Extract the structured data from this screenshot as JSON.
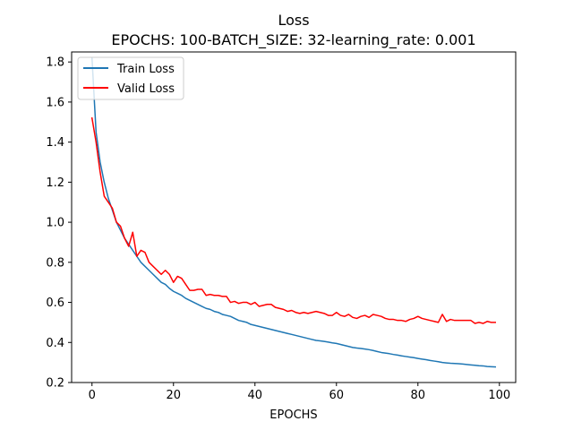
{
  "chart_data": {
    "type": "line",
    "title": "Loss",
    "subtitle": "EPOCHS: 100-BATCH_SIZE: 32-learning_rate: 0.001",
    "xlabel": "EPOCHS",
    "ylabel": "",
    "xlim": [
      -5,
      104
    ],
    "ylim": [
      0.2,
      1.85
    ],
    "x_ticks": [
      0,
      20,
      40,
      60,
      80,
      100
    ],
    "y_ticks": [
      0.2,
      0.4,
      0.6,
      0.8,
      1.0,
      1.2,
      1.4,
      1.6,
      1.8
    ],
    "y_tick_labels": [
      "0.2",
      "0.4",
      "0.6",
      "0.8",
      "1.0",
      "1.2",
      "1.4",
      "1.6",
      "1.8"
    ],
    "grid": false,
    "legend_position": "top-left",
    "series": [
      {
        "name": "Train Loss",
        "color": "#1f77b4",
        "values": [
          1.82,
          1.45,
          1.3,
          1.2,
          1.12,
          1.06,
          1.0,
          0.96,
          0.92,
          0.89,
          0.86,
          0.83,
          0.8,
          0.78,
          0.76,
          0.74,
          0.72,
          0.7,
          0.69,
          0.67,
          0.655,
          0.645,
          0.635,
          0.62,
          0.61,
          0.6,
          0.59,
          0.58,
          0.57,
          0.565,
          0.555,
          0.55,
          0.54,
          0.535,
          0.53,
          0.52,
          0.51,
          0.505,
          0.5,
          0.49,
          0.485,
          0.48,
          0.475,
          0.47,
          0.465,
          0.46,
          0.455,
          0.45,
          0.445,
          0.44,
          0.435,
          0.43,
          0.425,
          0.42,
          0.415,
          0.41,
          0.408,
          0.405,
          0.402,
          0.398,
          0.395,
          0.39,
          0.385,
          0.38,
          0.375,
          0.372,
          0.37,
          0.367,
          0.364,
          0.36,
          0.355,
          0.35,
          0.347,
          0.344,
          0.34,
          0.337,
          0.333,
          0.33,
          0.327,
          0.324,
          0.32,
          0.317,
          0.314,
          0.31,
          0.307,
          0.304,
          0.3,
          0.298,
          0.296,
          0.295,
          0.294,
          0.292,
          0.29,
          0.288,
          0.286,
          0.284,
          0.283,
          0.28,
          0.279,
          0.278
        ]
      },
      {
        "name": "Valid Loss",
        "color": "#ff0000",
        "values": [
          1.52,
          1.4,
          1.25,
          1.13,
          1.1,
          1.07,
          1.0,
          0.98,
          0.92,
          0.88,
          0.95,
          0.83,
          0.86,
          0.85,
          0.8,
          0.78,
          0.76,
          0.74,
          0.76,
          0.74,
          0.7,
          0.73,
          0.72,
          0.69,
          0.66,
          0.66,
          0.665,
          0.665,
          0.635,
          0.64,
          0.635,
          0.635,
          0.63,
          0.63,
          0.6,
          0.605,
          0.595,
          0.6,
          0.6,
          0.59,
          0.6,
          0.58,
          0.585,
          0.59,
          0.59,
          0.575,
          0.57,
          0.565,
          0.555,
          0.56,
          0.55,
          0.545,
          0.55,
          0.545,
          0.55,
          0.555,
          0.55,
          0.545,
          0.535,
          0.535,
          0.55,
          0.535,
          0.53,
          0.54,
          0.525,
          0.52,
          0.53,
          0.535,
          0.525,
          0.54,
          0.535,
          0.53,
          0.52,
          0.515,
          0.515,
          0.51,
          0.51,
          0.505,
          0.515,
          0.52,
          0.53,
          0.52,
          0.515,
          0.51,
          0.505,
          0.5,
          0.54,
          0.505,
          0.515,
          0.51,
          0.51,
          0.51,
          0.51,
          0.51,
          0.495,
          0.5,
          0.495,
          0.505,
          0.5,
          0.5
        ]
      }
    ]
  }
}
